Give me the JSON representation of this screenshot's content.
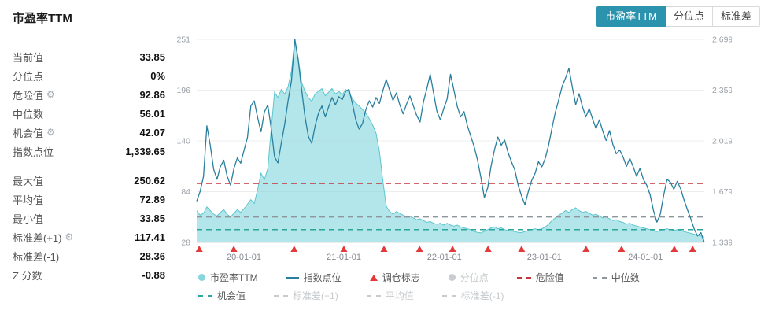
{
  "header": {
    "title": "市盈率TTM"
  },
  "tabs": [
    {
      "name": "pe-ttm",
      "label": "市盈率TTM",
      "active": true
    },
    {
      "name": "percentile",
      "label": "分位点",
      "active": false
    },
    {
      "name": "std",
      "label": "标准差",
      "active": false
    }
  ],
  "stats_primary": [
    {
      "name": "current-value",
      "label": "当前值",
      "value": "33.85",
      "gear": false
    },
    {
      "name": "percentile",
      "label": "分位点",
      "value": "0%",
      "gear": false
    },
    {
      "name": "danger-value",
      "label": "危险值",
      "value": "92.86",
      "gear": true
    },
    {
      "name": "median",
      "label": "中位数",
      "value": "56.01",
      "gear": false
    },
    {
      "name": "opportunity-value",
      "label": "机会值",
      "value": "42.07",
      "gear": true
    },
    {
      "name": "index-level",
      "label": "指数点位",
      "value": "1,339.65",
      "gear": false
    }
  ],
  "stats_secondary": [
    {
      "name": "max-value",
      "label": "最大值",
      "value": "250.62",
      "gear": false
    },
    {
      "name": "mean-value",
      "label": "平均值",
      "value": "72.89",
      "gear": false
    },
    {
      "name": "min-value",
      "label": "最小值",
      "value": "33.85",
      "gear": false
    },
    {
      "name": "std-plus1",
      "label": "标准差(+1)",
      "value": "117.41",
      "gear": true
    },
    {
      "name": "std-minus1",
      "label": "标准差(-1)",
      "value": "28.36",
      "gear": false
    },
    {
      "name": "z-score",
      "label": "Z 分数",
      "value": "-0.88",
      "gear": false
    }
  ],
  "colors": {
    "accent": "#2b93ae",
    "area": "#85d6dd",
    "area_outline": "#5cc6cf",
    "line": "#2a7f9e",
    "danger": "#c2353b",
    "median": "#8e959b",
    "opportunity": "#2aa79b",
    "marker": "#e23a3a",
    "disabled": "#c8ccd0"
  },
  "chart_data": {
    "type": "line",
    "note": "series values sampled uniformly over x range 2019-07 to 2024-08",
    "left_axis": {
      "ticks": [
        "28",
        "84",
        "140",
        "196",
        "251"
      ],
      "min": 28,
      "max": 251
    },
    "right_axis": {
      "ticks": [
        "1,339",
        "1,679",
        "2,019",
        "2,359",
        "2,699"
      ],
      "min": 1339,
      "max": 2699
    },
    "x_ticks": [
      {
        "label": "20-01-01",
        "pos": 0.093
      },
      {
        "label": "21-01-01",
        "pos": 0.29
      },
      {
        "label": "22-01-01",
        "pos": 0.488
      },
      {
        "label": "23-01-01",
        "pos": 0.685
      },
      {
        "label": "24-01-01",
        "pos": 0.884
      }
    ],
    "series": [
      {
        "name": "市盈率TTM",
        "type": "area",
        "axis": "left",
        "color": "#85d6dd",
        "outline": "#5cc6cf",
        "values": [
          63,
          58,
          60,
          67,
          63,
          59,
          57,
          61,
          64,
          59,
          56,
          60,
          64,
          61,
          65,
          70,
          75,
          71,
          86,
          104,
          97,
          109,
          152,
          193,
          187,
          196,
          191,
          199,
          216,
          250.62,
          230,
          204,
          194,
          187,
          183,
          191,
          194,
          197,
          189,
          193,
          197,
          191,
          194,
          190,
          196,
          193,
          186,
          181,
          178,
          174,
          170,
          164,
          157,
          148,
          128,
          96,
          68,
          62,
          59,
          62,
          60,
          58,
          56,
          57,
          55,
          53,
          54,
          52,
          50,
          51,
          49,
          48,
          49,
          47,
          49,
          47,
          46,
          47,
          45,
          44,
          43,
          42,
          40,
          39,
          38.5,
          40,
          42,
          44,
          45,
          43,
          44,
          42,
          41,
          40.5,
          40,
          39,
          38.8,
          40,
          41,
          42,
          43,
          42,
          43,
          45,
          48,
          52,
          55,
          58,
          60,
          63,
          61,
          64,
          66,
          63,
          61,
          62,
          60,
          58,
          59,
          57,
          55,
          56,
          54,
          52,
          53,
          51,
          50,
          48,
          49,
          47,
          46,
          45,
          44,
          43,
          42,
          41,
          40,
          41,
          42,
          43,
          42,
          41,
          42,
          41,
          40,
          39,
          38,
          37,
          36,
          35,
          33.85
        ]
      },
      {
        "name": "指数点位",
        "type": "line",
        "axis": "right",
        "color": "#2a7f9e",
        "values": [
          1615,
          1680,
          1780,
          2120,
          1990,
          1830,
          1762,
          1848,
          1890,
          1782,
          1722,
          1835,
          1905,
          1870,
          1958,
          2042,
          2254,
          2287,
          2175,
          2080,
          2212,
          2260,
          2105,
          1912,
          1872,
          2005,
          2130,
          2288,
          2420,
          2699,
          2560,
          2365,
          2180,
          2050,
          2002,
          2120,
          2205,
          2253,
          2180,
          2248,
          2310,
          2260,
          2315,
          2295,
          2350,
          2365,
          2270,
          2160,
          2098,
          2135,
          2230,
          2288,
          2245,
          2310,
          2270,
          2355,
          2430,
          2360,
          2290,
          2340,
          2262,
          2200,
          2265,
          2320,
          2255,
          2190,
          2145,
          2280,
          2368,
          2465,
          2340,
          2215,
          2160,
          2235,
          2300,
          2465,
          2360,
          2250,
          2180,
          2215,
          2120,
          2050,
          1980,
          1890,
          1772,
          1640,
          1705,
          1852,
          1960,
          2045,
          1990,
          2025,
          1942,
          1880,
          1825,
          1722,
          1650,
          1592,
          1680,
          1755,
          1802,
          1880,
          1845,
          1902,
          1990,
          2105,
          2212,
          2295,
          2385,
          2440,
          2505,
          2380,
          2262,
          2335,
          2248,
          2180,
          2235,
          2165,
          2102,
          2160,
          2085,
          2022,
          2088,
          1995,
          1932,
          1958,
          1912,
          1848,
          1902,
          1845,
          1782,
          1835,
          1762,
          1722,
          1658,
          1552,
          1475,
          1528,
          1655,
          1762,
          1742,
          1695,
          1748,
          1700,
          1625,
          1560,
          1498,
          1430,
          1382,
          1405,
          1339.65
        ]
      }
    ],
    "reference_lines": [
      {
        "name": "危险值",
        "name_en": "danger-value",
        "value": 92.86,
        "color": "#c2353b"
      },
      {
        "name": "中位数",
        "name_en": "median",
        "value": 56.01,
        "color": "#8e959b"
      },
      {
        "name": "机会值",
        "name_en": "opportunity-value",
        "value": 42.07,
        "color": "#2aa79b"
      }
    ],
    "markers": {
      "name": "调仓标志",
      "name_en": "rebalance-marker",
      "color": "#e23a3a",
      "positions": [
        0.005,
        0.073,
        0.192,
        0.29,
        0.369,
        0.439,
        0.504,
        0.574,
        0.64,
        0.767,
        0.837,
        0.941,
        0.977
      ]
    }
  },
  "legend": {
    "rows": [
      [
        {
          "name": "pe-ttm",
          "label": "市盈率TTM",
          "marker": "circle",
          "color": "#85d6dd",
          "disabled": false
        },
        {
          "name": "index-level",
          "label": "指数点位",
          "marker": "line",
          "color": "#2a7f9e",
          "disabled": false
        },
        {
          "name": "rebalance-marker",
          "label": "调仓标志",
          "marker": "triangle",
          "color": "#e23a3a",
          "disabled": false
        },
        {
          "name": "percentile",
          "label": "分位点",
          "marker": "circle",
          "color": "#c8ccd0",
          "disabled": true
        },
        {
          "name": "danger-value",
          "label": "危险值",
          "marker": "dash",
          "color": "#c2353b",
          "disabled": false
        },
        {
          "name": "median",
          "label": "中位数",
          "marker": "dash",
          "color": "#8e959b",
          "disabled": false
        }
      ],
      [
        {
          "name": "opportunity-value",
          "label": "机会值",
          "marker": "dash",
          "color": "#2aa79b",
          "disabled": false
        },
        {
          "name": "std-plus1",
          "label": "标准差(+1)",
          "marker": "dash",
          "color": "#c8ccd0",
          "disabled": true
        },
        {
          "name": "mean",
          "label": "平均值",
          "marker": "dash",
          "color": "#c8ccd0",
          "disabled": true
        },
        {
          "name": "std-minus1",
          "label": "标准差(-1)",
          "marker": "dash",
          "color": "#c8ccd0",
          "disabled": true
        }
      ]
    ]
  }
}
